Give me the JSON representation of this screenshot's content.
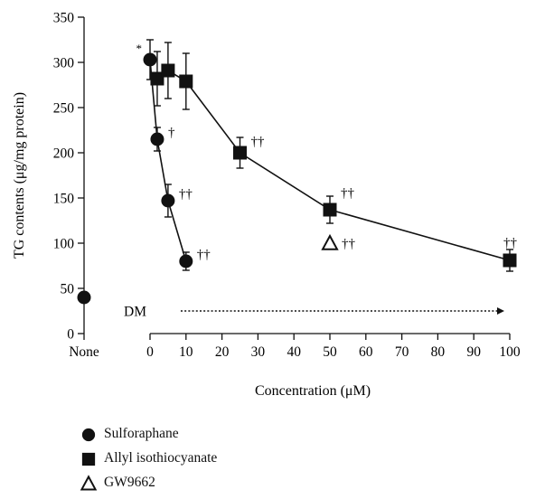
{
  "chart_data": {
    "type": "line",
    "ylabel": "TG contents (μg/mg protein)",
    "xlabel": "Concentration (μM)",
    "ylim": [
      0,
      350
    ],
    "yticks": [
      0,
      50,
      100,
      150,
      200,
      250,
      300,
      350
    ],
    "xlim": [
      0,
      100
    ],
    "xticks": [
      0,
      10,
      20,
      30,
      40,
      50,
      60,
      70,
      80,
      90,
      100
    ],
    "none_tick_label": "None",
    "grid": false,
    "legend_position": "bottom-left",
    "control": {
      "x_label": "None",
      "y": 40,
      "marker": "circle-filled"
    },
    "dm_annotation": {
      "label": "DM",
      "x_start": 2,
      "x_end": 100,
      "y": 25
    },
    "series": [
      {
        "name": "Sulforaphane",
        "marker": "circle-filled",
        "connected": true,
        "x": [
          0,
          2,
          5,
          10
        ],
        "y": [
          303,
          215,
          147,
          80
        ],
        "err": [
          22,
          13,
          18,
          10
        ],
        "annotations": [
          "*",
          "†",
          "††",
          "††"
        ]
      },
      {
        "name": "Allyl isothiocyanate",
        "marker": "square-filled",
        "connected": true,
        "x": [
          2,
          5,
          10,
          25,
          50,
          100
        ],
        "y": [
          282,
          291,
          279,
          200,
          137,
          81
        ],
        "err": [
          30,
          31,
          31,
          17,
          15,
          12
        ],
        "annotations": [
          "",
          "",
          "",
          "††",
          "††",
          "††"
        ]
      },
      {
        "name": "GW9662",
        "marker": "triangle-open",
        "connected": false,
        "x": [
          50
        ],
        "y": [
          100
        ],
        "err": [
          0
        ],
        "annotations": [
          "††"
        ]
      }
    ]
  }
}
